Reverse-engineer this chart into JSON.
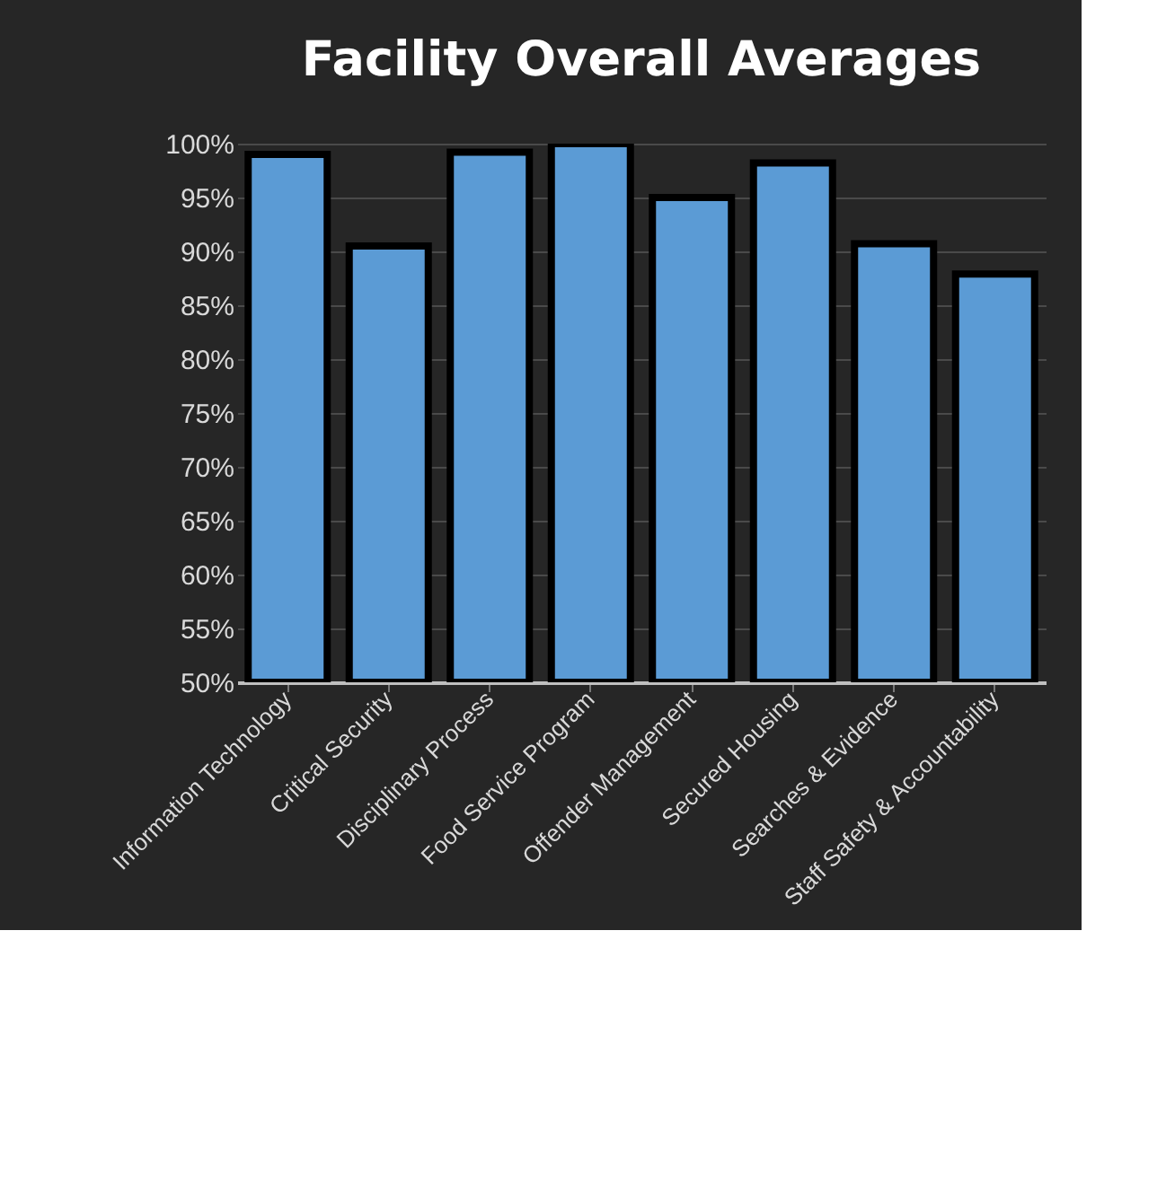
{
  "chart_data": {
    "type": "bar",
    "title": "Facility Overall Averages",
    "categories": [
      "Information Technology",
      "Critical Security",
      "Disciplinary Process",
      "Food Service Program",
      "Offender Management",
      "Secured Housing",
      "Searches & Evidence",
      "Staff Safety & Accountability"
    ],
    "values": [
      99.0,
      90.5,
      99.2,
      100,
      95.0,
      98.2,
      90.7,
      87.9
    ],
    "color": "#5b9bd5",
    "ylim": [
      50,
      100
    ],
    "yticks": [
      {
        "value": 50,
        "label": "50%"
      },
      {
        "value": 55,
        "label": "55%"
      },
      {
        "value": 60,
        "label": "60%"
      },
      {
        "value": 65,
        "label": "65%"
      },
      {
        "value": 70,
        "label": "70%"
      },
      {
        "value": 75,
        "label": "75%"
      },
      {
        "value": 80,
        "label": "80%"
      },
      {
        "value": 85,
        "label": "85%"
      },
      {
        "value": 90,
        "label": "90%"
      },
      {
        "value": 95,
        "label": "95%"
      },
      {
        "value": 100,
        "label": "100%"
      }
    ],
    "grid": "y"
  }
}
